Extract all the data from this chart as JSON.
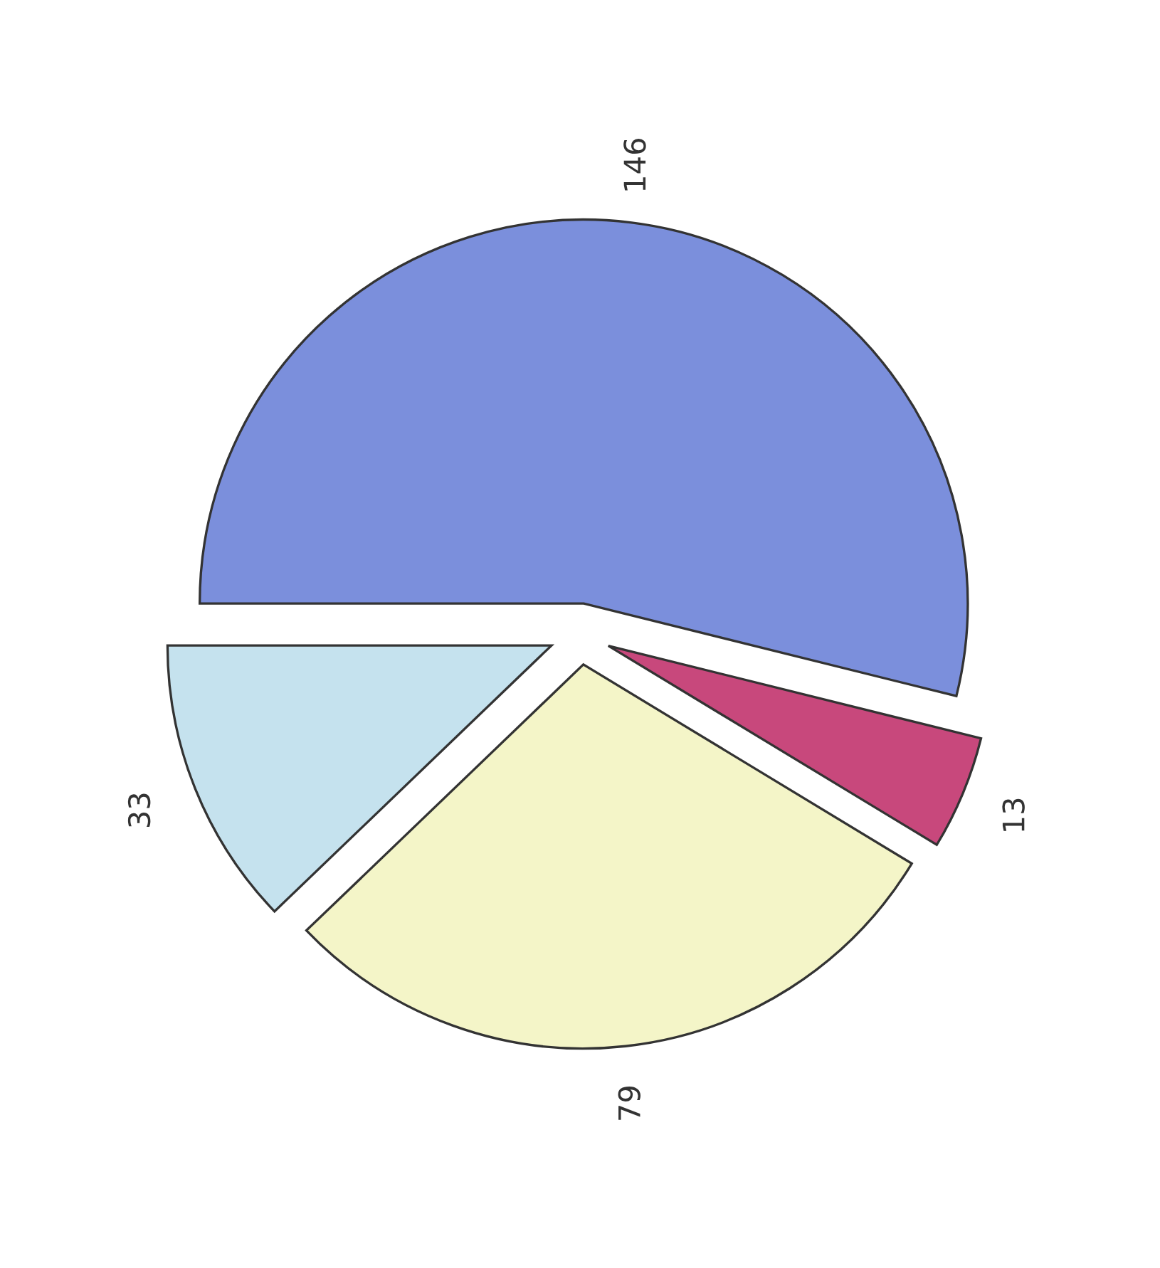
{
  "chart_data": {
    "type": "pie",
    "categories": [
      null,
      null,
      null,
      null
    ],
    "values": [
      146,
      13,
      79,
      33
    ],
    "colors": [
      "#7b8fdc",
      "#c8487c",
      "#f4f5c8",
      "#c5e2ee"
    ],
    "value_labels": [
      "146",
      "13",
      "79",
      "33"
    ]
  }
}
